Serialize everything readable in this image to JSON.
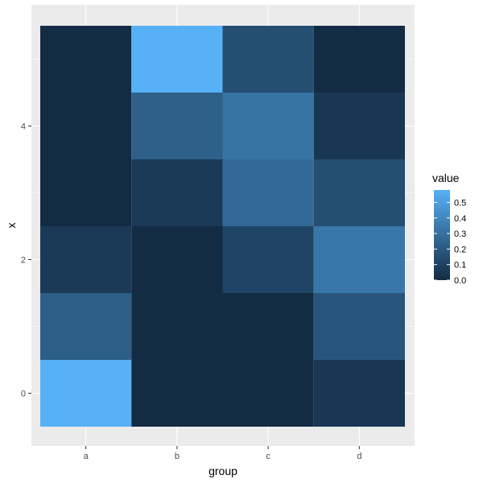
{
  "chart_data": {
    "type": "heatmap",
    "xlabel": "group",
    "ylabel": "x",
    "x_categories": [
      "a",
      "b",
      "c",
      "d"
    ],
    "y_values": [
      0,
      1,
      2,
      3,
      4,
      5
    ],
    "y_ticks": [
      "0",
      "2",
      "4"
    ],
    "ylim": [
      -0.5,
      5.5
    ],
    "cells": [
      {
        "group": "a",
        "x": 0,
        "value": 0.58
      },
      {
        "group": "a",
        "x": 1,
        "value": 0.22
      },
      {
        "group": "a",
        "x": 2,
        "value": 0.06
      },
      {
        "group": "a",
        "x": 3,
        "value": 0.0
      },
      {
        "group": "a",
        "x": 4,
        "value": 0.0
      },
      {
        "group": "a",
        "x": 5,
        "value": 0.0
      },
      {
        "group": "b",
        "x": 0,
        "value": 0.0
      },
      {
        "group": "b",
        "x": 1,
        "value": 0.0
      },
      {
        "group": "b",
        "x": 2,
        "value": 0.0
      },
      {
        "group": "b",
        "x": 3,
        "value": 0.06
      },
      {
        "group": "b",
        "x": 4,
        "value": 0.23
      },
      {
        "group": "b",
        "x": 5,
        "value": 0.58
      },
      {
        "group": "c",
        "x": 0,
        "value": 0.0
      },
      {
        "group": "c",
        "x": 1,
        "value": 0.01
      },
      {
        "group": "c",
        "x": 2,
        "value": 0.11
      },
      {
        "group": "c",
        "x": 3,
        "value": 0.27
      },
      {
        "group": "c",
        "x": 4,
        "value": 0.31
      },
      {
        "group": "c",
        "x": 5,
        "value": 0.15
      },
      {
        "group": "d",
        "x": 0,
        "value": 0.05
      },
      {
        "group": "d",
        "x": 1,
        "value": 0.18
      },
      {
        "group": "d",
        "x": 2,
        "value": 0.33
      },
      {
        "group": "d",
        "x": 3,
        "value": 0.15
      },
      {
        "group": "d",
        "x": 4,
        "value": 0.05
      },
      {
        "group": "d",
        "x": 5,
        "value": 0.0
      }
    ],
    "legend": {
      "title": "value",
      "min": 0.0,
      "max": 0.58,
      "breaks": [
        "0.0",
        "0.1",
        "0.2",
        "0.3",
        "0.4",
        "0.5"
      ],
      "position": "right"
    },
    "colors": {
      "low": "#132b43",
      "high": "#56b1f7",
      "panel_background": "#ebebeb",
      "grid": "#ffffff"
    },
    "grid": true
  }
}
